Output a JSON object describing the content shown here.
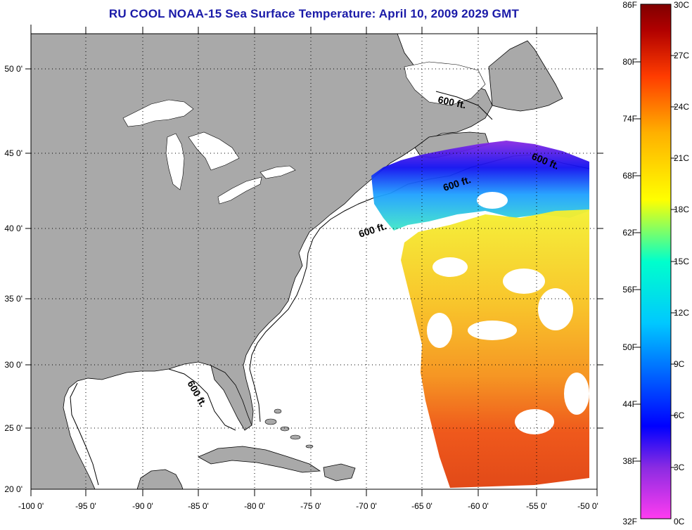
{
  "title": "RU COOL  NOAA-15  Sea Surface Temperature:  April 10, 2009 2029 GMT",
  "map": {
    "lon_ticks": [
      "-100 0'",
      "-95 0'",
      "-90 0'",
      "-85 0'",
      "-80 0'",
      "-75 0'",
      "-70 0'",
      "-65 0'",
      "-60 0'",
      "-55 0'",
      "-50 0'"
    ],
    "lat_ticks": [
      "50 0'",
      "45 0'",
      "40 0'",
      "35 0'",
      "30 0'",
      "25 0'",
      "20 0'"
    ],
    "contour_labels": [
      "600 ft.",
      "600 ft.",
      "600 ft.",
      "600 ft.",
      "600 ft."
    ],
    "colors": {
      "land": "#a9a9a9",
      "ocean": "#ffffff",
      "frame": "#000000"
    }
  },
  "colorbar": {
    "fahrenheit": [
      "86F",
      "80F",
      "74F",
      "68F",
      "62F",
      "56F",
      "50F",
      "44F",
      "38F",
      "32F"
    ],
    "celsius": [
      "30C",
      "27C",
      "24C",
      "21C",
      "18C",
      "15C",
      "12C",
      "9C",
      "6C",
      "3C",
      "0C"
    ],
    "stops": [
      "#ff3cf0",
      "#8a2be2",
      "#0000ff",
      "#00c8ff",
      "#00ffcc",
      "#ffff00",
      "#ffb000",
      "#ff3c00",
      "#b00000",
      "#800000"
    ]
  }
}
